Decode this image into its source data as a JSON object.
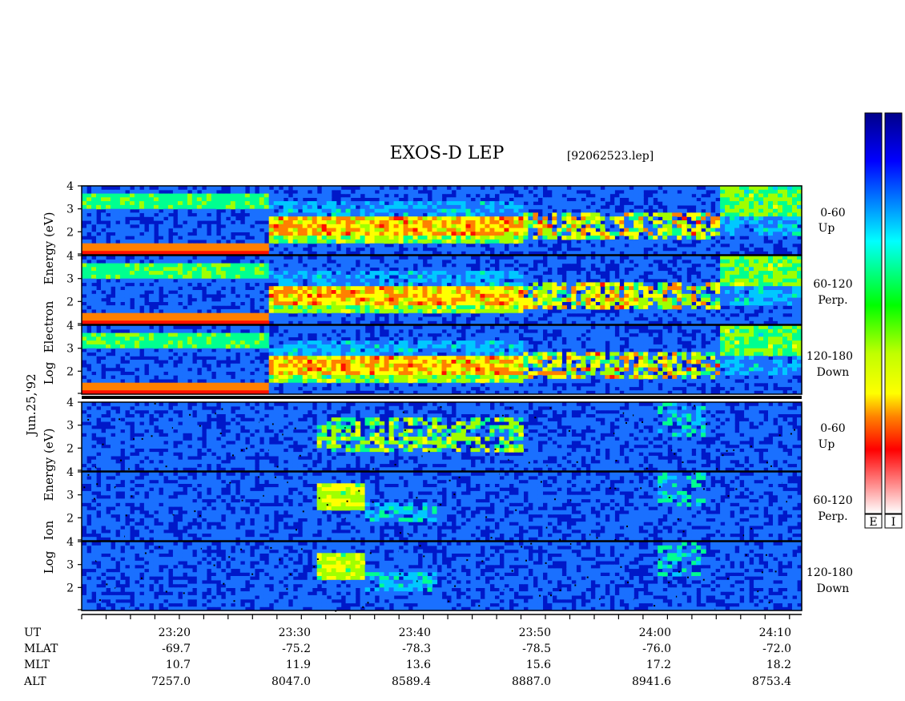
{
  "chart_data": {
    "type": "heatmap",
    "title": "EXOS-D LEP",
    "file_label": "[92062523.lep]",
    "date_label": "Jun.25,'92",
    "y_axis": {
      "scale": "log",
      "ticks": [
        "2",
        "3",
        "4"
      ],
      "ylim": [
        1,
        4
      ]
    },
    "groups": [
      {
        "id": "electron",
        "ylabel": [
          "Log",
          "Electron",
          "Energy (eV)"
        ],
        "panels": [
          {
            "label1": "0-60",
            "label2": "Up"
          },
          {
            "label1": "60-120",
            "label2": "Perp."
          },
          {
            "label1": "120-180",
            "label2": "Down"
          }
        ]
      },
      {
        "id": "ion",
        "ylabel": [
          "Log",
          "Ion",
          "Energy (eV)"
        ],
        "panels": [
          {
            "label1": "0-60",
            "label2": "Up"
          },
          {
            "label1": "60-120",
            "label2": "Perp."
          },
          {
            "label1": "120-180",
            "label2": "Down"
          }
        ]
      }
    ],
    "x_axis": {
      "start": "23:13",
      "end": "24:12",
      "tick_minutes": [
        "23:20",
        "23:30",
        "23:40",
        "23:50",
        "24:00",
        "24:10"
      ]
    },
    "ephemeris": [
      {
        "name": "UT",
        "values": [
          "23:20",
          "23:30",
          "23:40",
          "23:50",
          "24:00",
          "24:10"
        ]
      },
      {
        "name": "MLAT",
        "values": [
          "-69.7",
          "-75.2",
          "-78.3",
          "-78.5",
          "-76.0",
          "-72.0"
        ]
      },
      {
        "name": "MLT",
        "values": [
          "10.7",
          "11.9",
          "13.6",
          "15.6",
          "17.2",
          "18.2"
        ]
      },
      {
        "name": "ALT",
        "values": [
          "7257.0",
          "8047.0",
          "8589.4",
          "8887.0",
          "8941.6",
          "8753.4"
        ]
      }
    ],
    "colorbars": [
      {
        "label": "E"
      },
      {
        "label": "I"
      }
    ],
    "colorscale": [
      "#ffffff",
      "#ff0000",
      "#ff8000",
      "#ffff00",
      "#00c000",
      "#00ffff",
      "#0060ff",
      "#0000b0"
    ],
    "grid": false
  }
}
